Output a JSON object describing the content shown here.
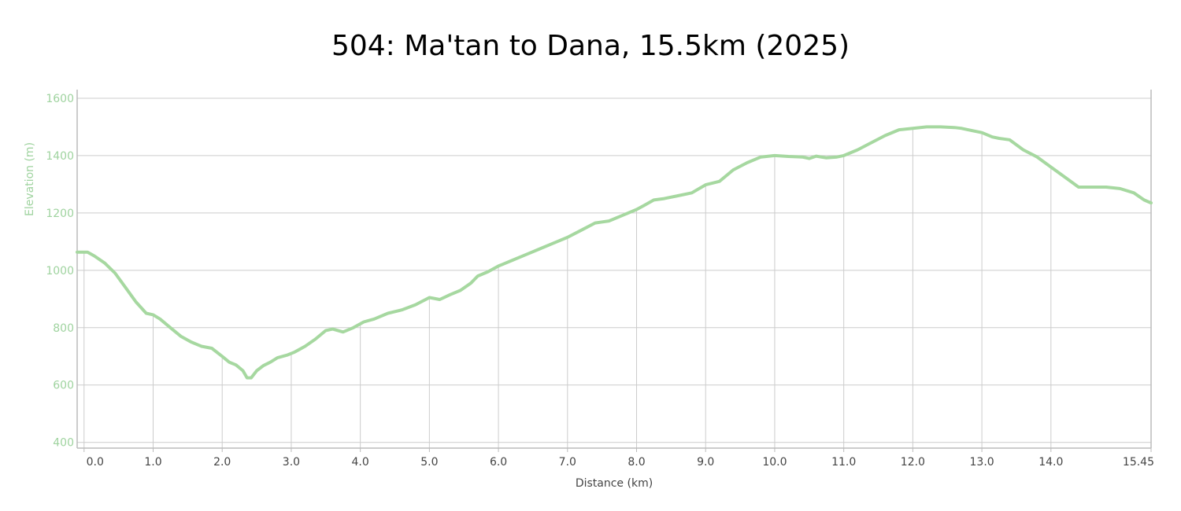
{
  "chart_data": {
    "type": "line",
    "title": "504: Ma'tan to Dana, 15.5km (2025)",
    "xlabel": "Distance (km)",
    "ylabel": "Elevation (m)",
    "xlim": [
      -0.1,
      15.45
    ],
    "ylim": [
      380,
      1630
    ],
    "x_ticks": [
      0,
      1,
      2,
      3,
      4,
      5,
      6,
      7,
      8,
      9,
      10,
      11,
      12,
      13,
      14,
      15.45
    ],
    "x_tick_labels": [
      "0.0",
      "1.0",
      "2.0",
      "3.0",
      "4.0",
      "5.0",
      "6.0",
      "7.0",
      "8.0",
      "9.0",
      "10.0",
      "11.0",
      "12.0",
      "13.0",
      "14.0",
      "15.45"
    ],
    "y_ticks": [
      400,
      600,
      800,
      1000,
      1200,
      1400,
      1600
    ],
    "y_tick_labels": [
      "400",
      "600",
      "800",
      "1000",
      "1200",
      "1400",
      "1600"
    ],
    "grid": true,
    "legend": "none",
    "colors": {
      "line": "#a6d8a0",
      "grid": "#cccccc",
      "axis": "#bbbbbb"
    },
    "series": [
      {
        "x": [
          -0.1,
          0.05,
          0.15,
          0.3,
          0.45,
          0.6,
          0.75,
          0.9,
          1.0,
          1.1,
          1.25,
          1.4,
          1.55,
          1.7,
          1.85,
          2.0,
          2.1,
          2.2,
          2.3,
          2.36,
          2.42,
          2.5,
          2.6,
          2.7,
          2.8,
          2.95,
          3.05,
          3.2,
          3.35,
          3.5,
          3.6,
          3.75,
          3.9,
          4.05,
          4.2,
          4.4,
          4.6,
          4.8,
          5.0,
          5.15,
          5.3,
          5.45,
          5.6,
          5.7,
          5.85,
          6.0,
          6.2,
          6.4,
          6.6,
          6.8,
          7.0,
          7.2,
          7.4,
          7.6,
          7.8,
          8.0,
          8.1,
          8.25,
          8.4,
          8.6,
          8.8,
          9.0,
          9.2,
          9.4,
          9.6,
          9.8,
          10.0,
          10.2,
          10.4,
          10.5,
          10.6,
          10.75,
          10.9,
          11.0,
          11.2,
          11.4,
          11.6,
          11.8,
          12.0,
          12.2,
          12.4,
          12.6,
          12.7,
          12.8,
          13.0,
          13.15,
          13.25,
          13.4,
          13.6,
          13.8,
          14.0,
          14.2,
          14.4,
          14.6,
          14.8,
          15.0,
          15.2,
          15.35,
          15.45
        ],
        "y": [
          1063,
          1063,
          1050,
          1025,
          990,
          940,
          890,
          850,
          845,
          830,
          800,
          770,
          750,
          735,
          728,
          700,
          680,
          670,
          650,
          625,
          625,
          650,
          668,
          680,
          695,
          705,
          715,
          735,
          760,
          790,
          795,
          785,
          800,
          820,
          830,
          850,
          862,
          880,
          905,
          898,
          915,
          930,
          955,
          980,
          995,
          1015,
          1035,
          1055,
          1075,
          1095,
          1115,
          1140,
          1165,
          1172,
          1192,
          1212,
          1225,
          1245,
          1250,
          1260,
          1270,
          1298,
          1310,
          1350,
          1375,
          1395,
          1400,
          1397,
          1395,
          1390,
          1398,
          1392,
          1395,
          1400,
          1420,
          1445,
          1470,
          1490,
          1495,
          1500,
          1500,
          1498,
          1495,
          1490,
          1480,
          1465,
          1460,
          1455,
          1420,
          1395,
          1360,
          1325,
          1290,
          1290,
          1290,
          1285,
          1270,
          1245,
          1235
        ]
      }
    ]
  }
}
